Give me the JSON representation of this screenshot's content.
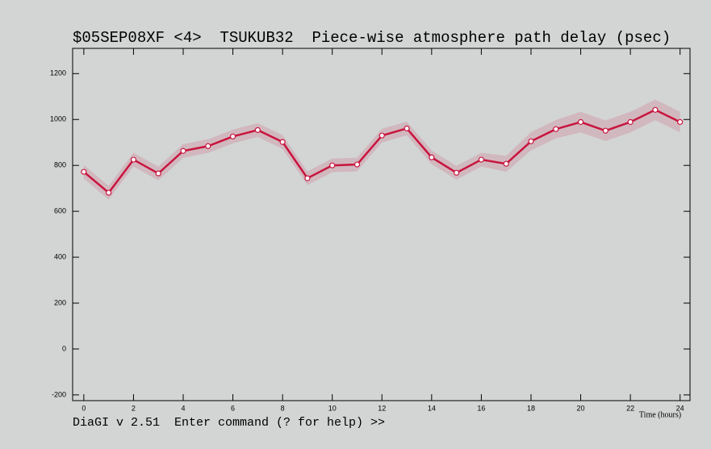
{
  "chart_data": {
    "type": "line",
    "title": "$05SEP08XF <4>  TSUKUB32  Piece-wise atmosphere path delay (psec)",
    "x_label": "Time (hours)",
    "x": [
      0,
      1,
      2,
      3,
      4,
      5,
      6,
      7,
      8,
      9,
      10,
      11,
      12,
      13,
      14,
      15,
      16,
      17,
      18,
      19,
      20,
      21,
      22,
      23,
      24
    ],
    "series": [
      {
        "color": "#c8143e",
        "values": [
          772,
          681,
          825,
          765,
          863,
          884,
          926,
          954,
          902,
          744,
          800,
          804,
          930,
          961,
          835,
          768,
          825,
          807,
          905,
          958,
          989,
          951,
          989,
          1042,
          989
        ],
        "errors": [
          30,
          30,
          30,
          30,
          30,
          30,
          30,
          30,
          30,
          30,
          30,
          30,
          30,
          30,
          30,
          30,
          30,
          35,
          40,
          40,
          45,
          45,
          45,
          45,
          45
        ]
      }
    ],
    "xlim": [
      -0.45,
      24.4
    ],
    "ylim": [
      -225,
      1310
    ],
    "xticks": [
      0,
      2,
      4,
      6,
      8,
      10,
      12,
      14,
      16,
      18,
      20,
      22,
      24
    ],
    "yticks": [
      -200,
      0,
      200,
      400,
      600,
      800,
      1000,
      1200
    ]
  },
  "status_line": "DiaGI v 2.51  Enter command (? for help) >>"
}
